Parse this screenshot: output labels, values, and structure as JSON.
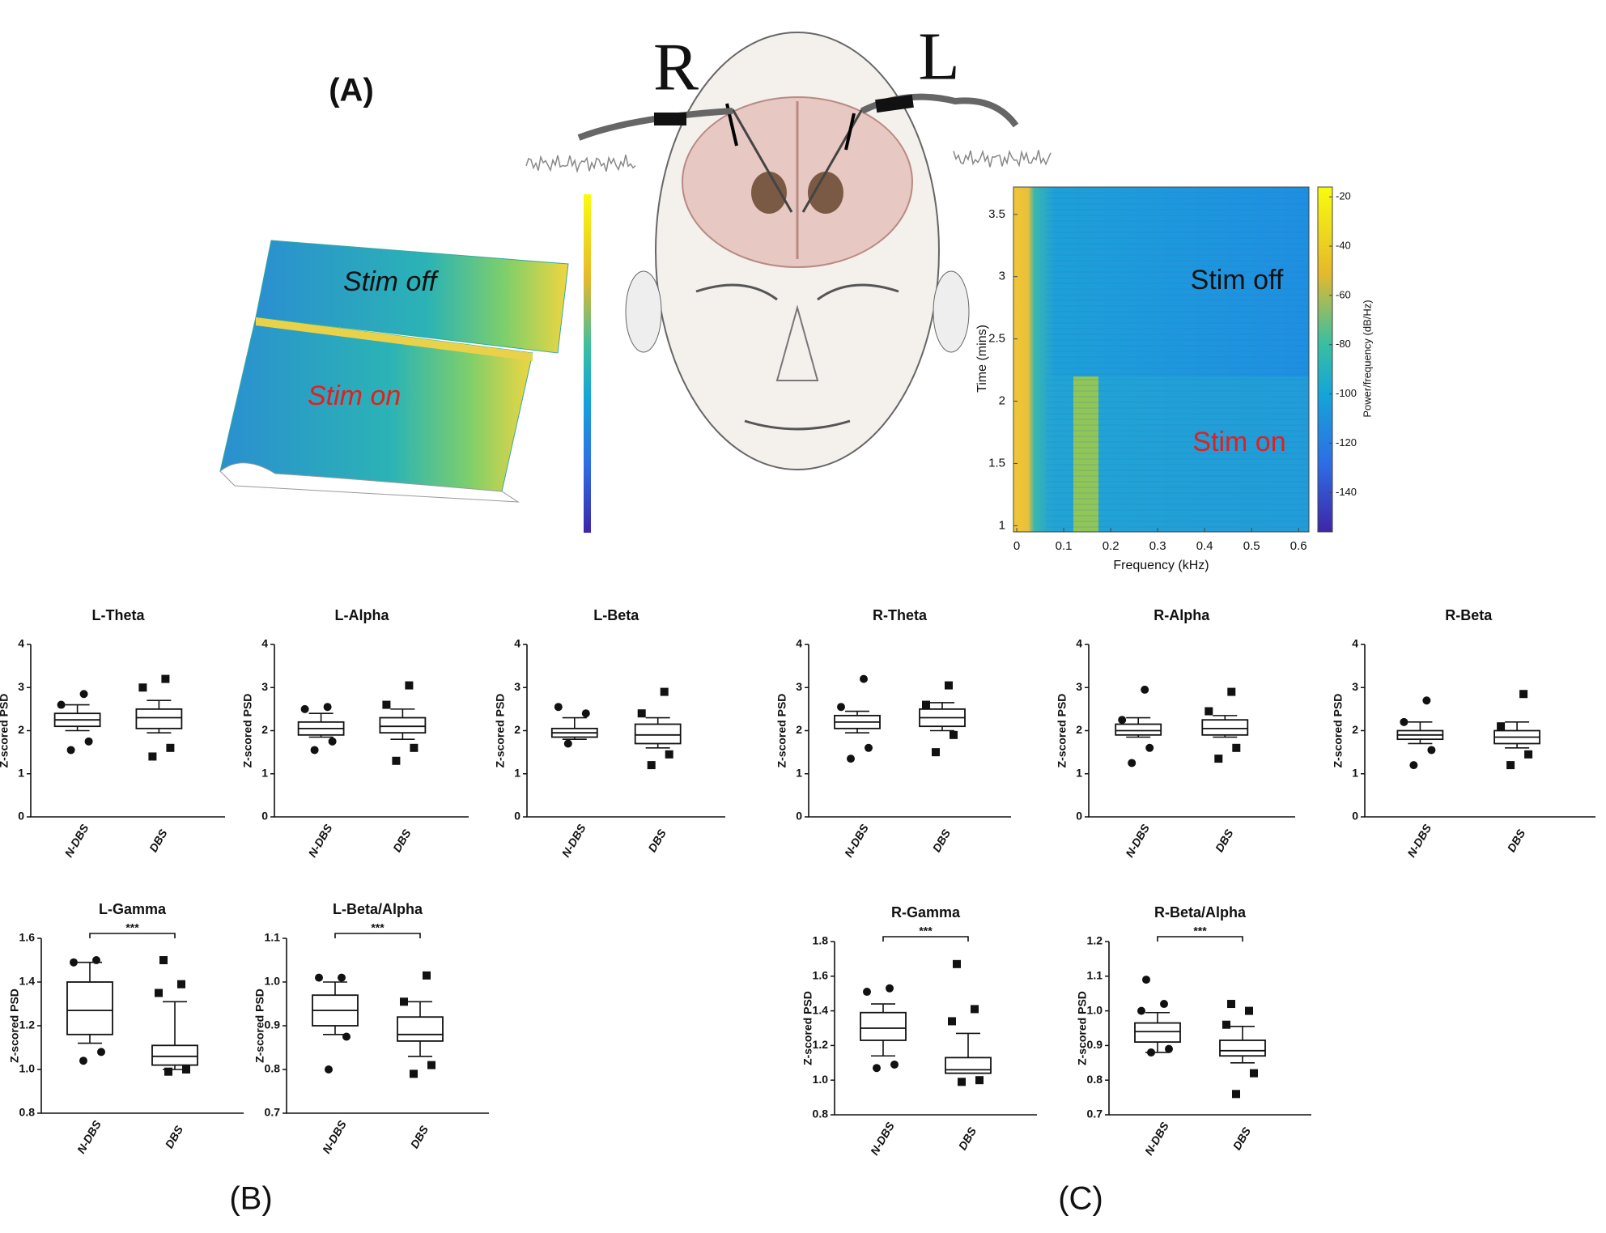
{
  "panel_labels": [
    "(A)",
    "(B)",
    "(C)"
  ],
  "illustration": {
    "right_label": "R",
    "left_label": "L"
  },
  "chart_data": [
    {
      "type": "surface",
      "annotations": [
        "Stim off",
        "Stim on"
      ]
    },
    {
      "type": "heatmap",
      "x_label": "Frequency (kHz)",
      "y_label": "Time (mins)",
      "colorbar_label": "Power/frequency (dB/Hz)",
      "annotations": [
        "Stim off",
        "Stim on"
      ],
      "xlim": [
        -0.007,
        0.622
      ],
      "xticks": [
        0,
        0.1,
        0.2,
        0.3,
        0.4,
        0.5,
        0.6
      ],
      "ylim": [
        0.95,
        3.72
      ],
      "yticks": [
        1,
        1.5,
        2,
        2.5,
        3,
        3.5
      ],
      "clim": [
        -156,
        -16
      ],
      "cticks": [
        -20,
        -40,
        -60,
        -80,
        -100,
        -120,
        -140
      ]
    },
    {
      "type": "box",
      "title": "L-Theta",
      "y_label": "Z-scored PSD",
      "categories": [
        "N-DBS",
        "DBS"
      ],
      "ylim": [
        0,
        4
      ],
      "yticks": [
        0,
        1,
        2,
        3,
        4
      ],
      "boxes": [
        {
          "whisker_low": 2.0,
          "q1": 2.1,
          "median": 2.25,
          "q3": 2.4,
          "whisker_high": 2.6,
          "points": [
            1.55,
            1.75,
            2.6,
            2.85
          ]
        },
        {
          "whisker_low": 1.95,
          "q1": 2.05,
          "median": 2.3,
          "q3": 2.5,
          "whisker_high": 2.7,
          "points": [
            1.4,
            1.6,
            3.0,
            3.2
          ]
        }
      ]
    },
    {
      "type": "box",
      "title": "L-Alpha",
      "y_label": "Z-scored PSD",
      "categories": [
        "N-DBS",
        "DBS"
      ],
      "ylim": [
        0,
        4
      ],
      "yticks": [
        0,
        1,
        2,
        3,
        4
      ],
      "boxes": [
        {
          "whisker_low": 1.85,
          "q1": 1.9,
          "median": 2.05,
          "q3": 2.2,
          "whisker_high": 2.4,
          "points": [
            1.55,
            1.75,
            2.5,
            2.55
          ]
        },
        {
          "whisker_low": 1.8,
          "q1": 1.95,
          "median": 2.1,
          "q3": 2.3,
          "whisker_high": 2.5,
          "points": [
            1.3,
            1.6,
            2.6,
            3.05
          ]
        }
      ]
    },
    {
      "type": "box",
      "title": "L-Beta",
      "y_label": "Z-scored PSD",
      "categories": [
        "N-DBS",
        "DBS"
      ],
      "ylim": [
        0,
        4
      ],
      "yticks": [
        0,
        1,
        2,
        3,
        4
      ],
      "boxes": [
        {
          "whisker_low": 1.8,
          "q1": 1.85,
          "median": 1.95,
          "q3": 2.05,
          "whisker_high": 2.3,
          "points": [
            1.7,
            2.4,
            2.55
          ]
        },
        {
          "whisker_low": 1.6,
          "q1": 1.7,
          "median": 1.9,
          "q3": 2.15,
          "whisker_high": 2.3,
          "points": [
            1.2,
            1.45,
            2.4,
            2.9
          ]
        }
      ]
    },
    {
      "type": "box",
      "title": "R-Theta",
      "y_label": "Z-scored PSD",
      "categories": [
        "N-DBS",
        "DBS"
      ],
      "ylim": [
        0,
        4
      ],
      "yticks": [
        0,
        1,
        2,
        3,
        4
      ],
      "boxes": [
        {
          "whisker_low": 1.95,
          "q1": 2.05,
          "median": 2.2,
          "q3": 2.35,
          "whisker_high": 2.45,
          "points": [
            1.35,
            1.6,
            2.55,
            3.2
          ]
        },
        {
          "whisker_low": 2.0,
          "q1": 2.1,
          "median": 2.3,
          "q3": 2.5,
          "whisker_high": 2.65,
          "points": [
            1.5,
            1.9,
            2.6,
            3.05
          ]
        }
      ]
    },
    {
      "type": "box",
      "title": "R-Alpha",
      "y_label": "Z-scored PSD",
      "categories": [
        "N-DBS",
        "DBS"
      ],
      "ylim": [
        0,
        4
      ],
      "yticks": [
        0,
        1,
        2,
        3,
        4
      ],
      "boxes": [
        {
          "whisker_low": 1.85,
          "q1": 1.9,
          "median": 2.0,
          "q3": 2.15,
          "whisker_high": 2.3,
          "points": [
            1.25,
            1.6,
            2.25,
            2.95
          ]
        },
        {
          "whisker_low": 1.85,
          "q1": 1.9,
          "median": 2.05,
          "q3": 2.25,
          "whisker_high": 2.35,
          "points": [
            1.35,
            1.6,
            2.45,
            2.9
          ]
        }
      ]
    },
    {
      "type": "box",
      "title": "R-Beta",
      "y_label": "Z-scored PSD",
      "categories": [
        "N-DBS",
        "DBS"
      ],
      "ylim": [
        0,
        4
      ],
      "yticks": [
        0,
        1,
        2,
        3,
        4
      ],
      "boxes": [
        {
          "whisker_low": 1.7,
          "q1": 1.8,
          "median": 1.9,
          "q3": 2.0,
          "whisker_high": 2.2,
          "points": [
            1.2,
            1.55,
            2.2,
            2.7
          ]
        },
        {
          "whisker_low": 1.6,
          "q1": 1.7,
          "median": 1.85,
          "q3": 2.0,
          "whisker_high": 2.2,
          "points": [
            1.2,
            1.45,
            2.1,
            2.85
          ]
        }
      ]
    },
    {
      "type": "box",
      "title": "L-Gamma",
      "y_label": "Z-scored PSD",
      "categories": [
        "N-DBS",
        "DBS"
      ],
      "significance": "***",
      "ylim": [
        0.8,
        1.6
      ],
      "yticks": [
        0.8,
        {
          "value": 1,
          "label": "1.0"
        },
        1.2,
        1.4,
        1.6
      ],
      "boxes": [
        {
          "whisker_low": 1.12,
          "q1": 1.16,
          "median": 1.27,
          "q3": 1.4,
          "whisker_high": 1.49,
          "points": [
            1.04,
            1.08,
            1.49,
            1.5
          ]
        },
        {
          "whisker_low": 1.0,
          "q1": 1.02,
          "median": 1.06,
          "q3": 1.11,
          "whisker_high": 1.31,
          "points": [
            0.99,
            1.0,
            1.35,
            1.39,
            1.5
          ]
        }
      ]
    },
    {
      "type": "box",
      "title": "L-Beta/Alpha",
      "y_label": "Z-scored PSD",
      "categories": [
        "N-DBS",
        "DBS"
      ],
      "significance": "***",
      "ylim": [
        0.7,
        1.1
      ],
      "yticks": [
        0.7,
        0.8,
        0.9,
        {
          "value": 1,
          "label": "1.0"
        },
        1.1
      ],
      "boxes": [
        {
          "whisker_low": 0.88,
          "q1": 0.9,
          "median": 0.935,
          "q3": 0.97,
          "whisker_high": 1.0,
          "points": [
            0.8,
            0.875,
            1.01,
            1.01
          ]
        },
        {
          "whisker_low": 0.83,
          "q1": 0.865,
          "median": 0.88,
          "q3": 0.92,
          "whisker_high": 0.955,
          "points": [
            0.79,
            0.81,
            0.955,
            1.015
          ]
        }
      ]
    },
    {
      "type": "box",
      "title": "R-Gamma",
      "y_label": "Z-scored PSD",
      "categories": [
        "N-DBS",
        "DBS"
      ],
      "significance": "***",
      "ylim": [
        0.8,
        1.8
      ],
      "yticks": [
        0.8,
        {
          "value": 1,
          "label": "1.0"
        },
        1.2,
        1.4,
        1.6,
        1.8
      ],
      "boxes": [
        {
          "whisker_low": 1.14,
          "q1": 1.23,
          "median": 1.3,
          "q3": 1.39,
          "whisker_high": 1.44,
          "points": [
            1.07,
            1.09,
            1.51,
            1.53
          ]
        },
        {
          "whisker_low": 1.04,
          "q1": 1.04,
          "median": 1.06,
          "q3": 1.13,
          "whisker_high": 1.27,
          "points": [
            0.99,
            1.0,
            1.34,
            1.41,
            1.67
          ]
        }
      ]
    },
    {
      "type": "box",
      "title": "R-Beta/Alpha",
      "y_label": "Z-scored PSD",
      "categories": [
        "N-DBS",
        "DBS"
      ],
      "significance": "***",
      "ylim": [
        0.7,
        1.2
      ],
      "yticks": [
        0.7,
        0.8,
        0.9,
        {
          "value": 1,
          "label": "1.0"
        },
        1.1,
        1.2
      ],
      "boxes": [
        {
          "whisker_low": 0.88,
          "q1": 0.91,
          "median": 0.94,
          "q3": 0.965,
          "whisker_high": 0.995,
          "points": [
            0.88,
            0.89,
            1.0,
            1.02,
            1.09
          ]
        },
        {
          "whisker_low": 0.85,
          "q1": 0.87,
          "median": 0.885,
          "q3": 0.915,
          "whisker_high": 0.955,
          "points": [
            0.76,
            0.82,
            0.96,
            1.0,
            1.02
          ]
        }
      ]
    }
  ]
}
